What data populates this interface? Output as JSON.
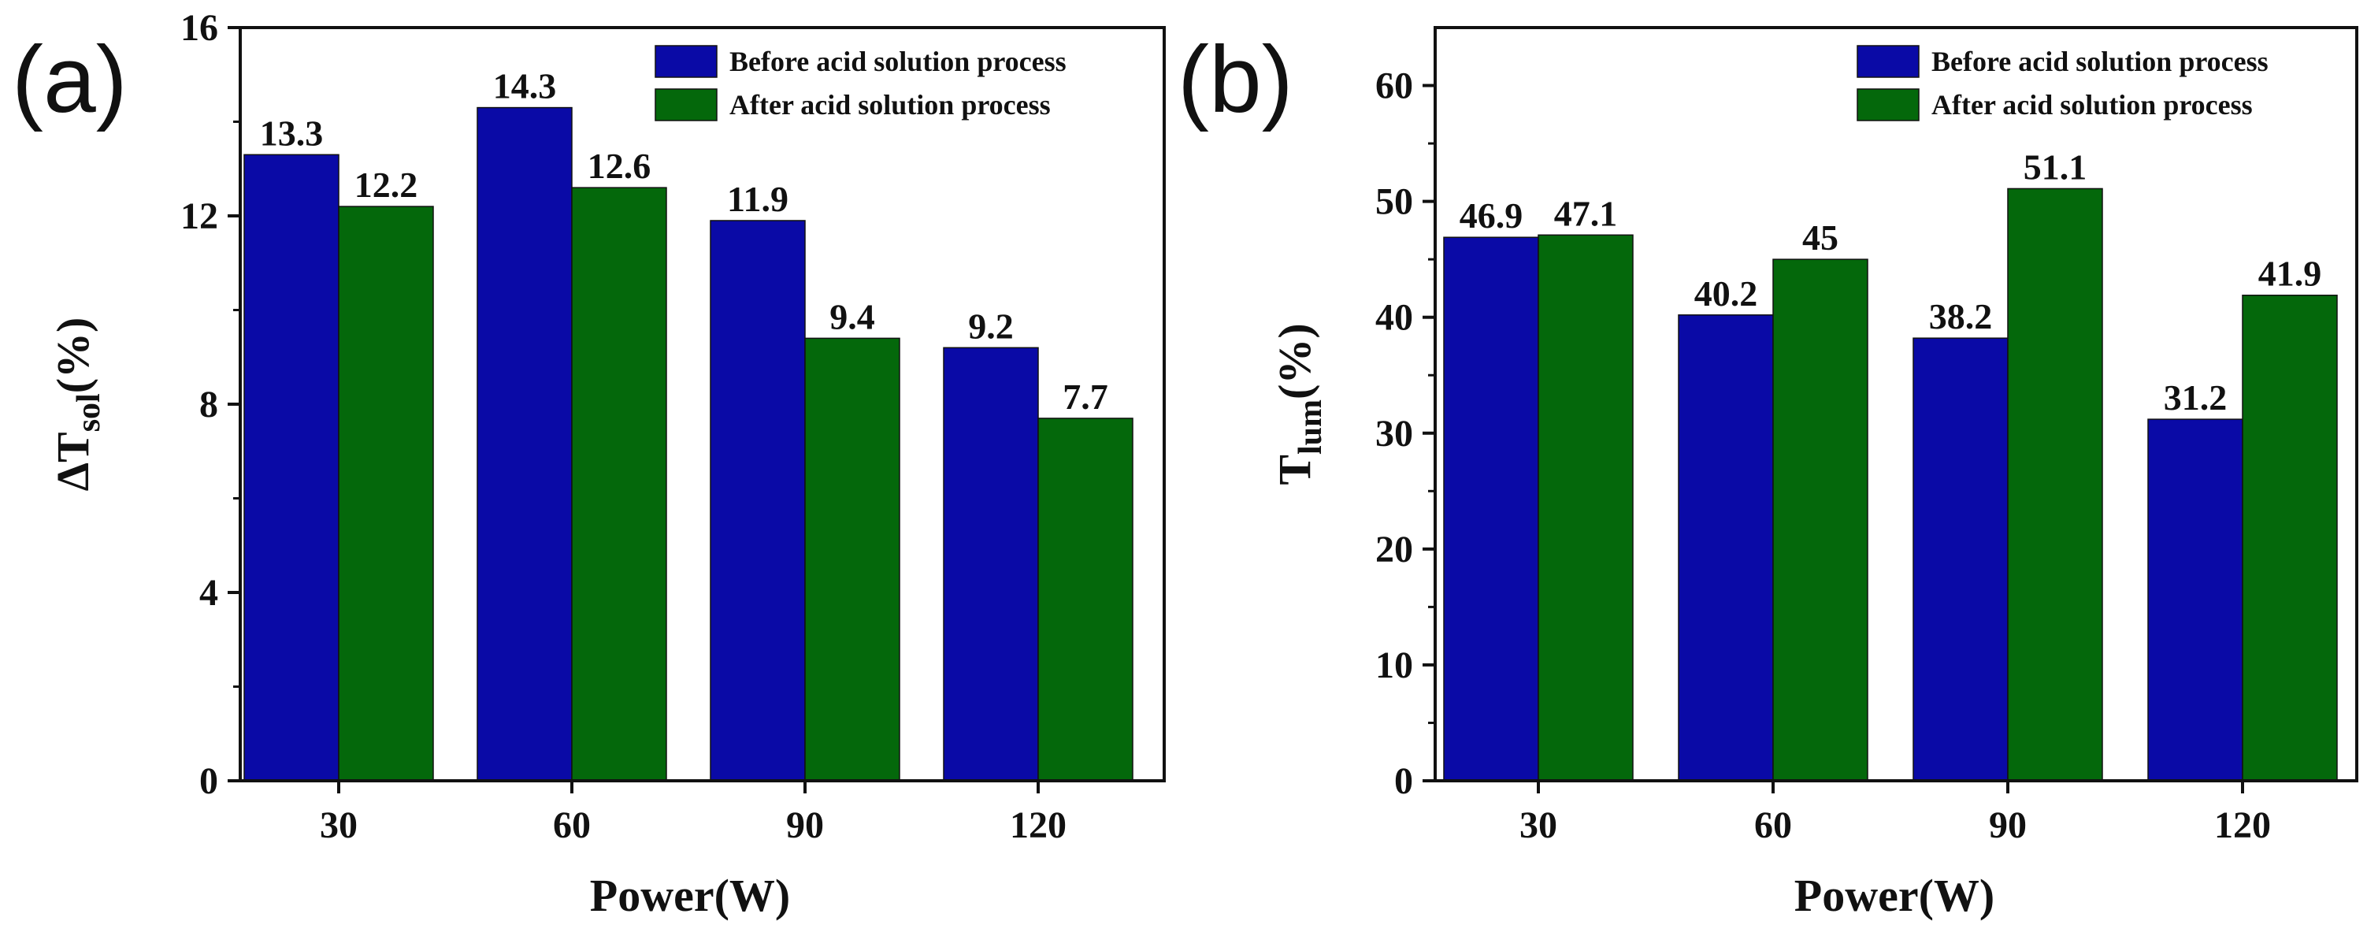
{
  "colors": {
    "before": "#0a0aa6",
    "after": "#04680b",
    "axis": "#111111"
  },
  "chart_data": [
    {
      "type": "bar",
      "panel_label": "(a)",
      "categories": [
        "30",
        "60",
        "90",
        "120"
      ],
      "series": [
        {
          "name": "Before acid solution process",
          "values": [
            13.3,
            14.3,
            11.9,
            9.2
          ]
        },
        {
          "name": "After acid solution process",
          "values": [
            12.2,
            12.6,
            9.4,
            7.7
          ]
        }
      ],
      "value_labels": [
        [
          "13.3",
          "14.3",
          "11.9",
          "9.2"
        ],
        [
          "12.2",
          "12.6",
          "9.4",
          "7.7"
        ]
      ],
      "xlabel": "Power(W)",
      "ylabel": {
        "main": "ΔT",
        "sub": "sol",
        "suffix": "(%)"
      },
      "ylim": [
        0,
        16
      ],
      "yticks": [
        0,
        4,
        8,
        12,
        16
      ],
      "ytick_labels": [
        "0",
        "4",
        "8",
        "12",
        "16"
      ],
      "legend_position": "top-right"
    },
    {
      "type": "bar",
      "panel_label": "(b)",
      "categories": [
        "30",
        "60",
        "90",
        "120"
      ],
      "series": [
        {
          "name": "Before acid solution process",
          "values": [
            46.9,
            40.2,
            38.2,
            31.2
          ]
        },
        {
          "name": "After acid solution process",
          "values": [
            47.1,
            45,
            51.1,
            41.9
          ]
        }
      ],
      "value_labels": [
        [
          "46.9",
          "40.2",
          "38.2",
          "31.2"
        ],
        [
          "47.1",
          "45",
          "51.1",
          "41.9"
        ]
      ],
      "xlabel": "Power(W)",
      "ylabel": {
        "main": "T",
        "sub": "lum",
        "suffix": "(%)"
      },
      "ylim": [
        0,
        65
      ],
      "yticks": [
        0,
        10,
        20,
        30,
        40,
        50,
        60
      ],
      "ytick_labels": [
        "0",
        "10",
        "20",
        "30",
        "40",
        "50",
        "60"
      ],
      "legend_position": "top-right"
    }
  ]
}
